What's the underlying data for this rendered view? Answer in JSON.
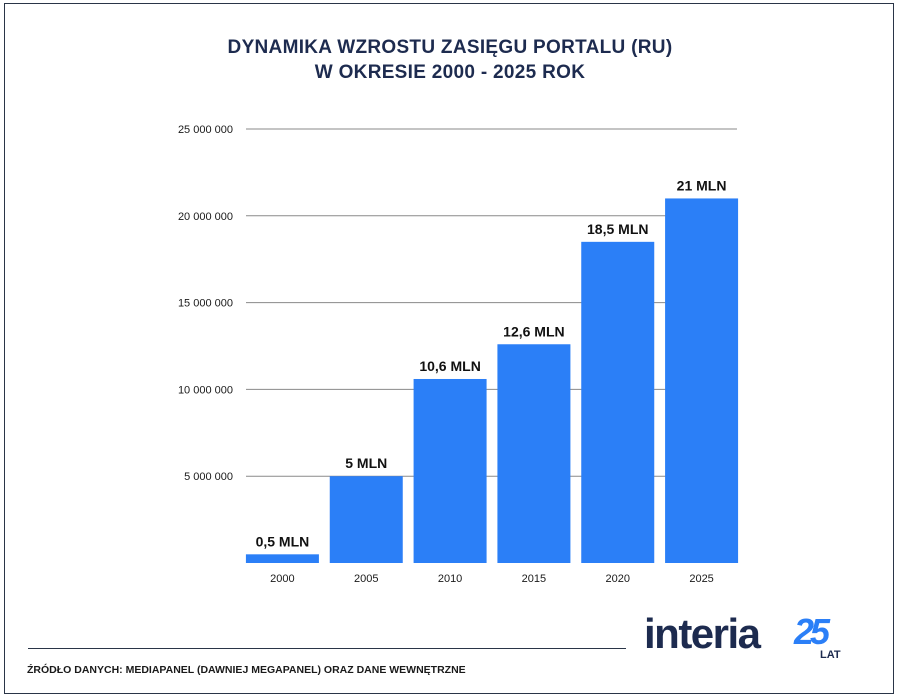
{
  "chart_data": {
    "type": "bar",
    "title_line1": "DYNAMIKA WZROSTU ZASIĘGU PORTALU (RU)",
    "title_line2": "W OKRESIE 2000 - 2025 ROK",
    "categories": [
      "2000",
      "2005",
      "2010",
      "2015",
      "2020",
      "2025"
    ],
    "values": [
      500000,
      5000000,
      10600000,
      12600000,
      18500000,
      21000000
    ],
    "data_labels": [
      "0,5 MLN",
      "5 MLN",
      "10,6 MLN",
      "12,6 MLN",
      "18,5 MLN",
      "21 MLN"
    ],
    "yticks": [
      5000000,
      10000000,
      15000000,
      20000000,
      25000000
    ],
    "ytick_labels": [
      "5 000 000",
      "10 000 000",
      "15 000 000",
      "20 000 000",
      "25 000 000"
    ],
    "ylim": [
      0,
      25000000
    ],
    "grid": true,
    "bar_color": "#2b7ff7",
    "xlabel": "",
    "ylabel": ""
  },
  "footer": {
    "source": "ŹRÓDŁO DANYCH: MEDIAPANEL (DAWNIEJ MEGAPANEL) ORAZ DANE WEWNĘTRZNE"
  },
  "logo": {
    "text": "interia",
    "number": "25",
    "suffix": "LAT",
    "text_color": "#1d2b4f",
    "accent": "#2b7ff7"
  }
}
